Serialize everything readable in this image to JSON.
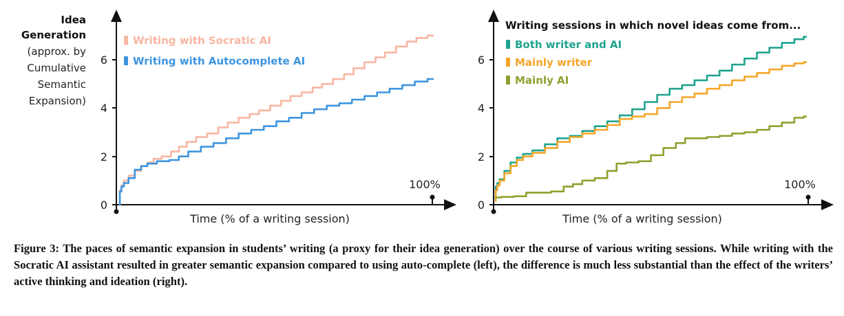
{
  "chart_data": [
    {
      "type": "line",
      "ylabel": {
        "title_lines": [
          "Idea",
          "Generation"
        ],
        "sub_lines": [
          "(approx. by",
          "Cumulative",
          "Semantic",
          "Expansion)"
        ]
      },
      "xlabel": "Time (% of a writing session)",
      "x_end_label": "100%",
      "xlim": [
        0,
        100
      ],
      "ylim": [
        0,
        7.5
      ],
      "yticks": [
        "0",
        "2",
        "4",
        "6"
      ],
      "legend_position": "top-left",
      "series": [
        {
          "name": "Writing with Socratic AI",
          "color": "#f7b6a1",
          "x": [
            0,
            0.5,
            1,
            2,
            4,
            6,
            8,
            10,
            12,
            15,
            18,
            20,
            23,
            26,
            30,
            33,
            36,
            40,
            43,
            46,
            50,
            53,
            56,
            60,
            63,
            66,
            70,
            73,
            76,
            80,
            83,
            86,
            90,
            93,
            96,
            100
          ],
          "y": [
            0.0,
            0.6,
            0.8,
            1.0,
            1.2,
            1.4,
            1.6,
            1.75,
            1.9,
            2.0,
            2.2,
            2.4,
            2.6,
            2.8,
            2.95,
            3.2,
            3.4,
            3.6,
            3.75,
            3.9,
            4.1,
            4.3,
            4.5,
            4.65,
            4.85,
            5.0,
            5.2,
            5.4,
            5.65,
            5.9,
            6.1,
            6.3,
            6.55,
            6.75,
            6.9,
            7.0
          ]
        },
        {
          "name": "Writing with Autocomplete AI",
          "color": "#3d95e0",
          "x": [
            0,
            0.5,
            1,
            2,
            4,
            6,
            8,
            10,
            14,
            18,
            20,
            24,
            28,
            32,
            36,
            40,
            44,
            48,
            52,
            56,
            60,
            64,
            68,
            72,
            76,
            80,
            84,
            88,
            92,
            96,
            100
          ],
          "y": [
            0.0,
            0.55,
            0.75,
            0.9,
            1.1,
            1.45,
            1.6,
            1.7,
            1.8,
            1.85,
            2.0,
            2.2,
            2.4,
            2.55,
            2.75,
            2.95,
            3.1,
            3.25,
            3.45,
            3.6,
            3.8,
            3.95,
            4.1,
            4.2,
            4.35,
            4.5,
            4.65,
            4.8,
            4.95,
            5.1,
            5.2
          ]
        }
      ]
    },
    {
      "type": "line",
      "xlabel": "Time (% of a writing session)",
      "x_end_label": "100%",
      "xlim": [
        0,
        100
      ],
      "ylim": [
        0,
        7.5
      ],
      "yticks": [
        "0",
        "2",
        "4",
        "6"
      ],
      "legend_title": "Writing sessions in which novel ideas come from...",
      "legend_position": "top-left",
      "series": [
        {
          "name": "Both writer and AI",
          "color": "#1fa38f",
          "x": [
            0,
            0.5,
            1,
            2,
            4,
            6,
            8,
            10,
            14,
            18,
            22,
            26,
            30,
            34,
            38,
            42,
            46,
            50,
            54,
            58,
            62,
            66,
            70,
            74,
            78,
            82,
            86,
            90,
            94,
            98,
            100
          ],
          "y": [
            0.2,
            0.75,
            0.9,
            1.05,
            1.4,
            1.75,
            1.95,
            2.1,
            2.25,
            2.5,
            2.75,
            2.85,
            3.05,
            3.25,
            3.45,
            3.7,
            3.95,
            4.25,
            4.55,
            4.8,
            4.95,
            5.15,
            5.35,
            5.55,
            5.8,
            6.05,
            6.3,
            6.5,
            6.7,
            6.85,
            6.95
          ]
        },
        {
          "name": "Mainly writer",
          "color": "#f5a62a",
          "x": [
            0,
            0.5,
            1,
            2,
            4,
            6,
            8,
            10,
            14,
            18,
            22,
            26,
            30,
            34,
            38,
            42,
            46,
            50,
            54,
            58,
            62,
            66,
            70,
            74,
            78,
            82,
            86,
            90,
            94,
            98,
            100
          ],
          "y": [
            0.15,
            0.6,
            0.8,
            1.0,
            1.3,
            1.6,
            1.85,
            2.0,
            2.15,
            2.35,
            2.6,
            2.8,
            2.95,
            3.1,
            3.3,
            3.55,
            3.65,
            3.75,
            4.0,
            4.25,
            4.45,
            4.6,
            4.8,
            4.95,
            5.15,
            5.3,
            5.45,
            5.6,
            5.75,
            5.85,
            5.9
          ]
        },
        {
          "name": "Mainly AI",
          "color": "#8ea12f",
          "x": [
            0,
            4,
            8,
            12,
            16,
            20,
            24,
            26,
            30,
            34,
            38,
            40,
            44,
            48,
            52,
            56,
            60,
            62,
            66,
            70,
            74,
            78,
            82,
            86,
            90,
            94,
            98,
            100
          ],
          "y": [
            0.3,
            0.32,
            0.35,
            0.5,
            0.5,
            0.55,
            0.75,
            0.85,
            1.0,
            1.1,
            1.4,
            1.7,
            1.75,
            1.8,
            2.05,
            2.35,
            2.55,
            2.75,
            2.75,
            2.8,
            2.85,
            2.95,
            3.0,
            3.1,
            3.25,
            3.4,
            3.6,
            3.65
          ]
        }
      ]
    }
  ],
  "caption": "Figure 3: The paces of semantic expansion in students’ writing (a proxy for their idea generation) over the course of various writing sessions. While writing with the Socratic AI assistant resulted in greater semantic expansion compared to using auto-complete (left), the difference is much less substantial than the effect of the writers’ active thinking and ideation (right)."
}
